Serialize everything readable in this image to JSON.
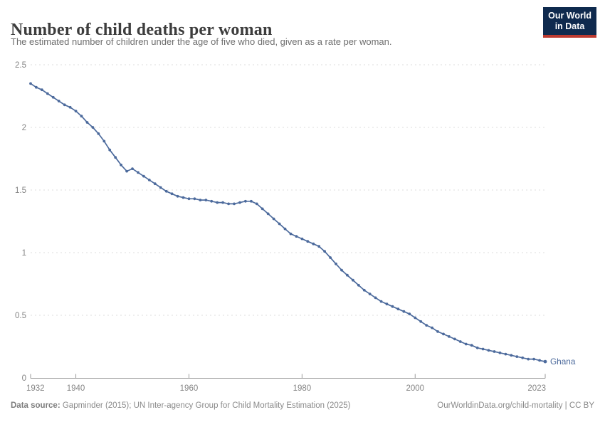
{
  "header": {
    "title": "Number of child deaths per woman",
    "subtitle": "The estimated number of children under the age of five who died, given as a rate per woman.",
    "logo_line1": "Our World",
    "logo_line2": "in Data"
  },
  "footer": {
    "source_label": "Data source:",
    "source_text": " Gapminder (2015); UN Inter-agency Group for Child Mortality Estimation (2025)",
    "link_text": "OurWorldinData.org/child-mortality | CC BY"
  },
  "colors": {
    "line": "#4C6A9C",
    "grid": "#dcdcdc",
    "axis": "#9a9a9a",
    "axis_text": "#858585",
    "logo_bg": "#0f2a4e",
    "logo_accent": "#bc3a30"
  },
  "chart_data": {
    "type": "line",
    "title": "Number of child deaths per woman",
    "subtitle": "The estimated number of children under the age of five who died, given as a rate per woman.",
    "xlabel": "",
    "ylabel": "",
    "grid": "dashed-horizontal",
    "legend_position": "end-of-line-label",
    "xlim": [
      1932,
      2023
    ],
    "ylim": [
      0,
      2.5
    ],
    "x_ticks": [
      1932,
      1940,
      1960,
      1980,
      2000,
      2023
    ],
    "y_ticks": [
      0,
      0.5,
      1,
      1.5,
      2,
      2.5
    ],
    "x": [
      1932,
      1933,
      1934,
      1935,
      1936,
      1937,
      1938,
      1939,
      1940,
      1941,
      1942,
      1943,
      1944,
      1945,
      1946,
      1947,
      1948,
      1949,
      1950,
      1951,
      1952,
      1953,
      1954,
      1955,
      1956,
      1957,
      1958,
      1959,
      1960,
      1961,
      1962,
      1963,
      1964,
      1965,
      1966,
      1967,
      1968,
      1969,
      1970,
      1971,
      1972,
      1973,
      1974,
      1975,
      1976,
      1977,
      1978,
      1979,
      1980,
      1981,
      1982,
      1983,
      1984,
      1985,
      1986,
      1987,
      1988,
      1989,
      1990,
      1991,
      1992,
      1993,
      1994,
      1995,
      1996,
      1997,
      1998,
      1999,
      2000,
      2001,
      2002,
      2003,
      2004,
      2005,
      2006,
      2007,
      2008,
      2009,
      2010,
      2011,
      2012,
      2013,
      2014,
      2015,
      2016,
      2017,
      2018,
      2019,
      2020,
      2021,
      2022,
      2023
    ],
    "series": [
      {
        "name": "Ghana",
        "color": "#4C6A9C",
        "values": [
          2.35,
          2.32,
          2.3,
          2.27,
          2.24,
          2.21,
          2.18,
          2.16,
          2.13,
          2.09,
          2.04,
          2.0,
          1.95,
          1.89,
          1.82,
          1.76,
          1.7,
          1.65,
          1.67,
          1.64,
          1.61,
          1.58,
          1.55,
          1.52,
          1.49,
          1.47,
          1.45,
          1.44,
          1.43,
          1.43,
          1.42,
          1.42,
          1.41,
          1.4,
          1.4,
          1.39,
          1.39,
          1.4,
          1.41,
          1.41,
          1.39,
          1.35,
          1.31,
          1.27,
          1.23,
          1.19,
          1.15,
          1.13,
          1.11,
          1.09,
          1.07,
          1.05,
          1.01,
          0.96,
          0.91,
          0.86,
          0.82,
          0.78,
          0.74,
          0.7,
          0.67,
          0.64,
          0.61,
          0.59,
          0.57,
          0.55,
          0.53,
          0.51,
          0.48,
          0.45,
          0.42,
          0.4,
          0.37,
          0.35,
          0.33,
          0.31,
          0.29,
          0.27,
          0.26,
          0.24,
          0.23,
          0.22,
          0.21,
          0.2,
          0.19,
          0.18,
          0.17,
          0.16,
          0.15,
          0.15,
          0.14,
          0.13
        ]
      }
    ]
  }
}
